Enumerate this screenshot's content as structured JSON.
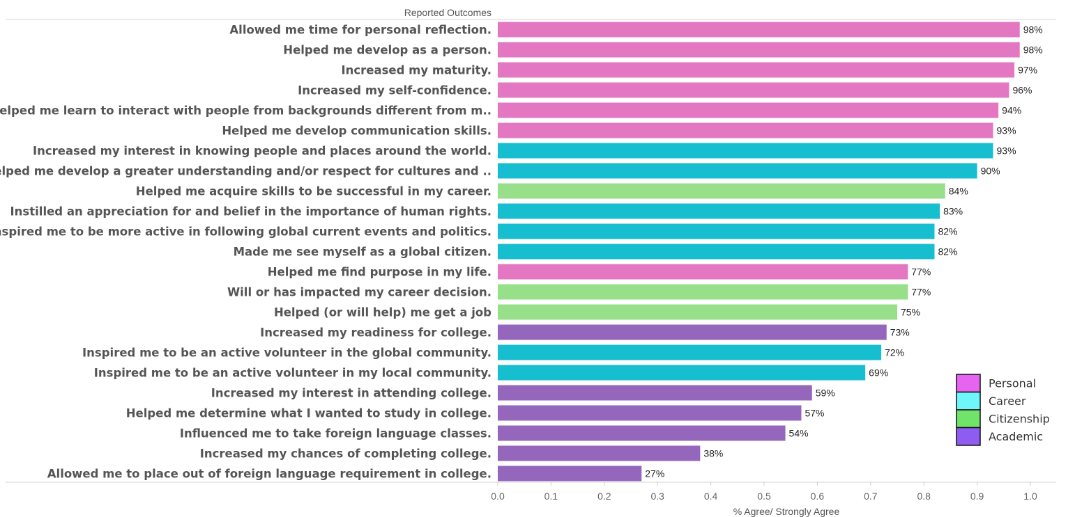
{
  "chart_data": {
    "type": "bar",
    "orientation": "horizontal",
    "header_label": "Reported Outcomes",
    "xlabel": "% Agree/ Strongly Agree",
    "xlim": [
      0,
      1.0
    ],
    "xticks": [
      "0.0",
      "0.1",
      "0.2",
      "0.3",
      "0.4",
      "0.5",
      "0.6",
      "0.7",
      "0.8",
      "0.9",
      "1.0"
    ],
    "grid": false,
    "legend_position": "bottom-right",
    "categories": [
      "Allowed me time for personal reflection.",
      "Helped me develop as a person.",
      "Increased my maturity.",
      "Increased my self-confidence.",
      "Helped me learn to interact with people from backgrounds different from m..",
      "Helped me develop communication skills.",
      "Increased my interest in knowing people and places around the world.",
      "Helped me develop a greater understanding and/or respect for cultures and ..",
      "Helped me acquire skills to be successful in my career.",
      "Instilled an appreciation for and belief in the importance of human rights.",
      "Inspired me to be more active in following global current events and politics.",
      "Made me see myself as a global citizen.",
      "Helped me find purpose in my life.",
      "Will or has impacted my career decision.",
      "Helped (or will help) me get a job",
      "Increased my readiness for college.",
      "Inspired me to be an active volunteer in the global community.",
      "Inspired me to be an active volunteer in my local community.",
      "Increased my interest in attending college.",
      "Helped me determine what I wanted to study in college.",
      "Influenced me to take foreign language classes.",
      "Increased my chances of completing college.",
      "Allowed me to place out of foreign language requirement in college."
    ],
    "values": [
      0.98,
      0.98,
      0.97,
      0.96,
      0.94,
      0.93,
      0.93,
      0.9,
      0.84,
      0.83,
      0.82,
      0.82,
      0.77,
      0.77,
      0.75,
      0.73,
      0.72,
      0.69,
      0.59,
      0.57,
      0.54,
      0.38,
      0.27
    ],
    "value_labels": [
      "98%",
      "98%",
      "97%",
      "96%",
      "94%",
      "93%",
      "93%",
      "90%",
      "84%",
      "83%",
      "82%",
      "82%",
      "77%",
      "77%",
      "75%",
      "73%",
      "72%",
      "69%",
      "59%",
      "57%",
      "54%",
      "38%",
      "27%"
    ],
    "bar_colors": [
      "#e377c2",
      "#e377c2",
      "#e377c2",
      "#e377c2",
      "#e377c2",
      "#e377c2",
      "#17becf",
      "#17becf",
      "#98df8a",
      "#17becf",
      "#17becf",
      "#17becf",
      "#e377c2",
      "#98df8a",
      "#98df8a",
      "#9467bd",
      "#17becf",
      "#17becf",
      "#9467bd",
      "#9467bd",
      "#9467bd",
      "#9467bd",
      "#9467bd"
    ],
    "legend": [
      {
        "label": "Personal",
        "color": "#e565f0"
      },
      {
        "label": "Career",
        "color": "#6ff6fb"
      },
      {
        "label": "Citizenship",
        "color": "#6fe36a"
      },
      {
        "label": "Academic",
        "color": "#8e5cf0"
      }
    ]
  }
}
